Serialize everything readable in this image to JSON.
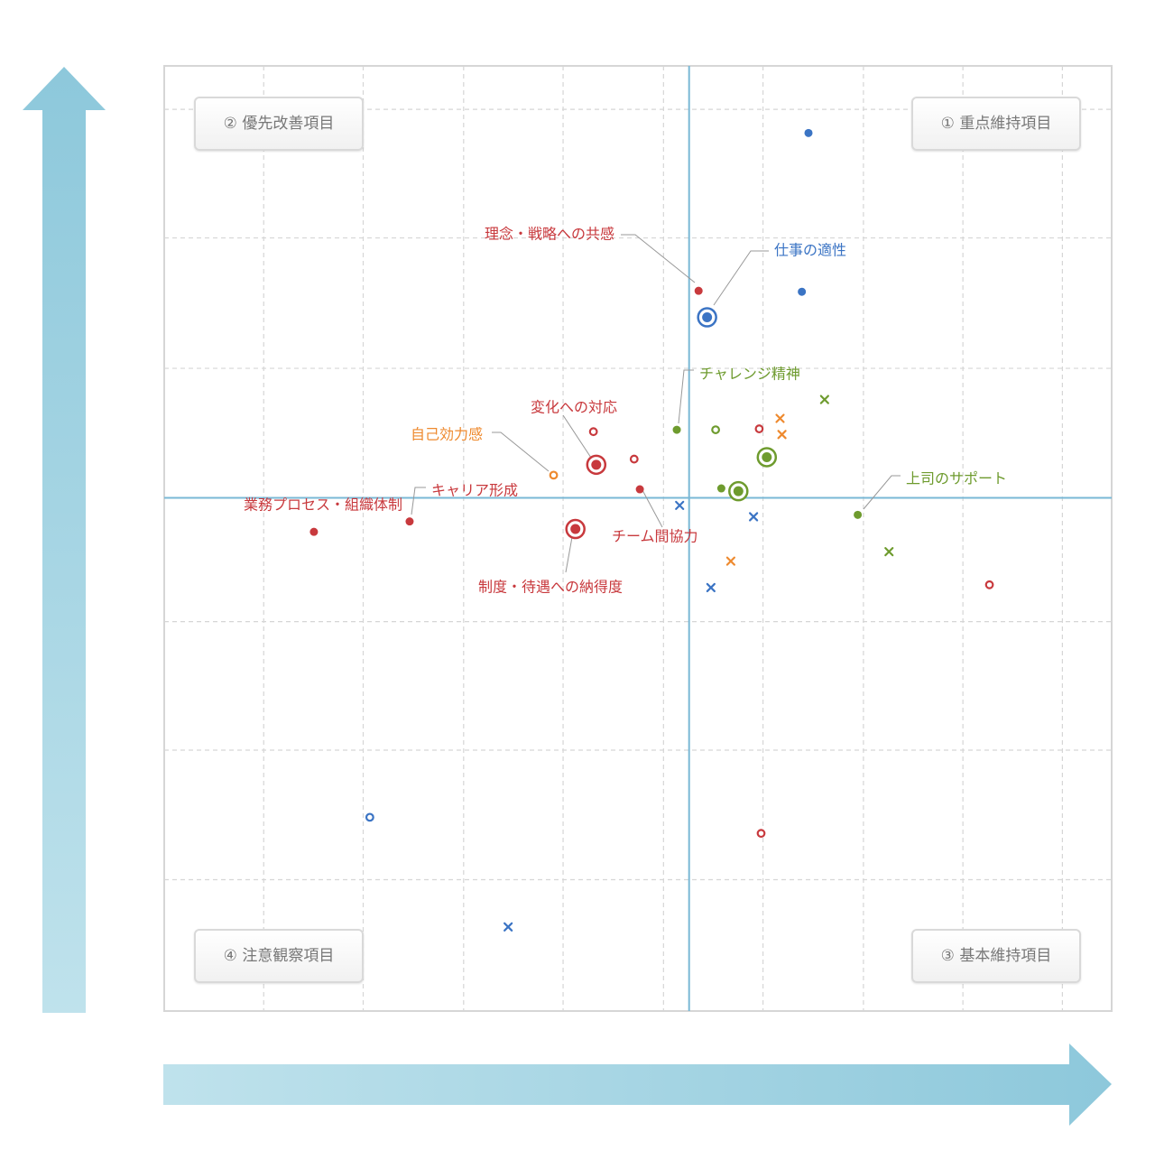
{
  "colors": {
    "red": "#c8393d",
    "blue": "#3b74c4",
    "green": "#6e9b2e",
    "orange": "#ee8a2f",
    "divider": "#7ab8d6",
    "arrow": "#9ccfe0",
    "grid": "#d6d6d6"
  },
  "quadrants": {
    "q1": "① 重点維持項目",
    "q2": "② 優先改善項目",
    "q3": "③ 基本維持項目",
    "q4": "④ 注意観察項目"
  },
  "chart_data": {
    "type": "scatter",
    "title": "",
    "xlabel": "",
    "ylabel": "",
    "xlim": [
      0,
      100
    ],
    "ylim": [
      0,
      100
    ],
    "grid": true,
    "divider": {
      "x": 55.4,
      "y": 54.3
    },
    "labeled_points": [
      {
        "label": "理念・戦略への共感",
        "color": "red",
        "marker": "dot",
        "x": 56.4,
        "y": 76.2
      },
      {
        "label": "仕事の適性",
        "color": "blue",
        "marker": "target",
        "x": 57.3,
        "y": 73.4
      },
      {
        "label": "チャレンジ精神",
        "color": "green",
        "marker": "dot",
        "x": 54.1,
        "y": 61.5
      },
      {
        "label": "変化への対応",
        "color": "red",
        "marker": "target",
        "x": 45.6,
        "y": 57.8
      },
      {
        "label": "自己効力感",
        "color": "orange",
        "marker": "ring",
        "x": 41.1,
        "y": 56.7
      },
      {
        "label": "キャリア形成",
        "color": "red",
        "marker": "dot",
        "x": 25.9,
        "y": 51.8
      },
      {
        "label": "業務プロセス・組織体制",
        "color": "red",
        "marker": "dot",
        "x": 15.8,
        "y": 50.7
      },
      {
        "label": "チーム間協力",
        "color": "red",
        "marker": "dot",
        "x": 50.2,
        "y": 55.2
      },
      {
        "label": "制度・待遇への納得度",
        "color": "red",
        "marker": "target",
        "x": 43.4,
        "y": 51.0
      },
      {
        "label": "上司のサポート",
        "color": "green",
        "marker": "dot",
        "x": 73.2,
        "y": 52.5
      }
    ],
    "other_points": [
      {
        "color": "blue",
        "marker": "dot",
        "x": 68.0,
        "y": 92.9
      },
      {
        "color": "blue",
        "marker": "dot",
        "x": 67.3,
        "y": 76.1
      },
      {
        "color": "green",
        "marker": "x",
        "x": 69.7,
        "y": 64.7
      },
      {
        "color": "green",
        "marker": "ring",
        "x": 58.2,
        "y": 61.5
      },
      {
        "color": "red",
        "marker": "ring",
        "x": 62.8,
        "y": 61.6
      },
      {
        "color": "orange",
        "marker": "x",
        "x": 65.0,
        "y": 62.7
      },
      {
        "color": "orange",
        "marker": "x",
        "x": 65.2,
        "y": 61.0
      },
      {
        "color": "red",
        "marker": "ring",
        "x": 45.3,
        "y": 61.3
      },
      {
        "color": "red",
        "marker": "ring",
        "x": 49.6,
        "y": 58.4
      },
      {
        "color": "green",
        "marker": "target",
        "x": 63.6,
        "y": 58.6
      },
      {
        "color": "green",
        "marker": "dot",
        "x": 58.8,
        "y": 55.3
      },
      {
        "color": "green",
        "marker": "target",
        "x": 60.6,
        "y": 55.0
      },
      {
        "color": "blue",
        "marker": "x",
        "x": 54.4,
        "y": 53.5
      },
      {
        "color": "blue",
        "marker": "x",
        "x": 62.2,
        "y": 52.3
      },
      {
        "color": "green",
        "marker": "x",
        "x": 76.5,
        "y": 48.6
      },
      {
        "color": "orange",
        "marker": "x",
        "x": 59.8,
        "y": 47.6
      },
      {
        "color": "blue",
        "marker": "x",
        "x": 57.7,
        "y": 44.8
      },
      {
        "color": "red",
        "marker": "ring",
        "x": 87.1,
        "y": 45.1
      },
      {
        "color": "blue",
        "marker": "ring",
        "x": 21.7,
        "y": 20.5
      },
      {
        "color": "red",
        "marker": "ring",
        "x": 63.0,
        "y": 18.8
      },
      {
        "color": "blue",
        "marker": "x",
        "x": 36.3,
        "y": 8.9
      }
    ]
  }
}
